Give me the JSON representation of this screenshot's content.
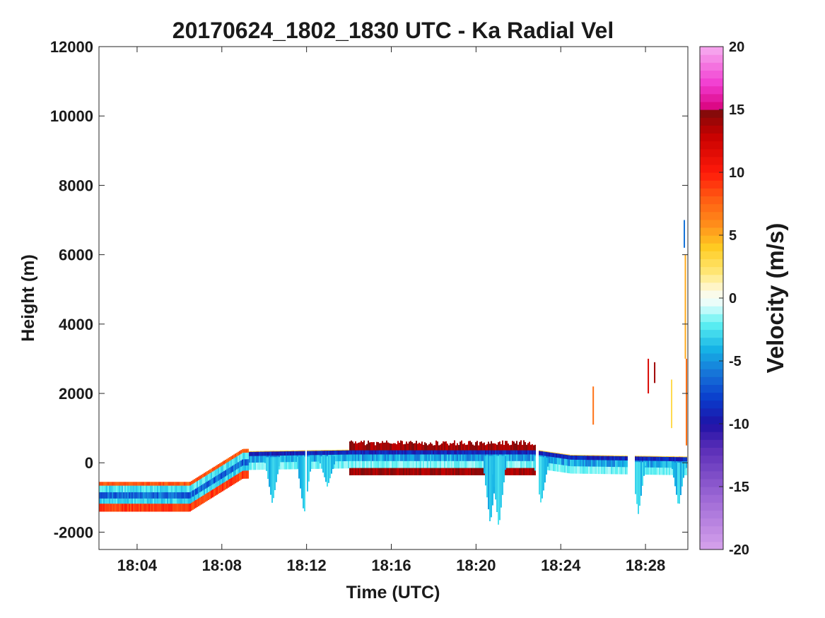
{
  "chart_data": {
    "type": "heatmap",
    "title": "20170624_1802_1830 UTC - Ka Radial Vel",
    "xlabel": "Time (UTC)",
    "ylabel": "Height (m)",
    "colorbar_label": "Velocity (m/s)",
    "x_ticks": [
      "18:04",
      "18:08",
      "18:12",
      "18:16",
      "18:20",
      "18:24",
      "18:28"
    ],
    "x_tick_minutes": [
      4,
      8,
      12,
      16,
      20,
      24,
      28
    ],
    "xlim_minutes": [
      2.2,
      30.0
    ],
    "y_ticks": [
      -2000,
      0,
      2000,
      4000,
      6000,
      8000,
      10000,
      12000
    ],
    "ylim": [
      -2500,
      12000
    ],
    "colorbar_ticks": [
      -20,
      -15,
      -10,
      -5,
      0,
      5,
      10,
      15,
      20
    ],
    "colorbar_range": [
      -20,
      20
    ],
    "colormap": [
      {
        "v": -20,
        "color": "#d6a2ec"
      },
      {
        "v": -16,
        "color": "#9f6ad6"
      },
      {
        "v": -12,
        "color": "#5b2eb8"
      },
      {
        "v": -10,
        "color": "#1e12a6"
      },
      {
        "v": -8,
        "color": "#0a3ccc"
      },
      {
        "v": -6,
        "color": "#1673d8"
      },
      {
        "v": -4,
        "color": "#16b4e6"
      },
      {
        "v": -2,
        "color": "#5ff2f2"
      },
      {
        "v": -0.5,
        "color": "#e6fdfd"
      },
      {
        "v": 0.5,
        "color": "#fffbe6"
      },
      {
        "v": 2,
        "color": "#ffe87a"
      },
      {
        "v": 4,
        "color": "#ffcc22"
      },
      {
        "v": 6,
        "color": "#ff8a1a"
      },
      {
        "v": 8,
        "color": "#ff5a12"
      },
      {
        "v": 10,
        "color": "#ff1a0a"
      },
      {
        "v": 13,
        "color": "#c60000"
      },
      {
        "v": 15,
        "color": "#7a0c0c"
      },
      {
        "v": 15.01,
        "color": "#d8007a"
      },
      {
        "v": 17,
        "color": "#f23ad0"
      },
      {
        "v": 20,
        "color": "#f7aef0"
      }
    ],
    "grid": false,
    "legend": "colorbar-right",
    "features": {
      "surface_band_top_m": [
        {
          "t": 2.2,
          "h": -700
        },
        {
          "t": 6.5,
          "h": -700
        },
        {
          "t": 9.0,
          "h": 250
        },
        {
          "t": 14.2,
          "h": 300
        },
        {
          "t": 22.8,
          "h": 300
        },
        {
          "t": 24.5,
          "h": 150
        },
        {
          "t": 30.0,
          "h": 100
        }
      ],
      "band_thickness_m": 600,
      "downward_dips": [
        {
          "t": 10.4,
          "depth": -1200
        },
        {
          "t": 11.9,
          "depth": -1500
        },
        {
          "t": 13.0,
          "depth": -700
        },
        {
          "t": 20.7,
          "depth": -1800
        },
        {
          "t": 21.1,
          "depth": -1900
        },
        {
          "t": 23.1,
          "depth": -1200
        },
        {
          "t": 27.7,
          "depth": -1500
        },
        {
          "t": 29.6,
          "depth": -1300
        }
      ]
    }
  }
}
